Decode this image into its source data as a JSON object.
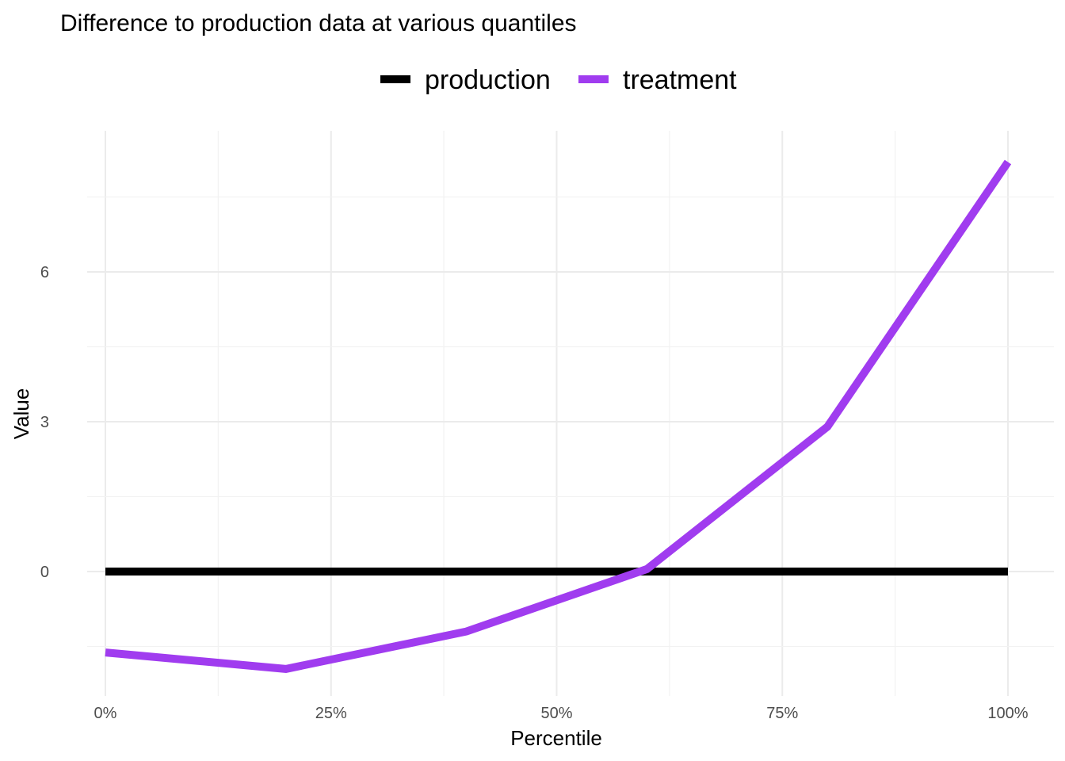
{
  "chart_data": {
    "type": "line",
    "title": "Difference to production data at various quantiles",
    "xlabel": "Percentile",
    "ylabel": "Value",
    "x": [
      0,
      20,
      40,
      60,
      80,
      100
    ],
    "x_ticks": [
      0,
      25,
      50,
      75,
      100
    ],
    "x_tick_labels": [
      "0%",
      "25%",
      "50%",
      "75%",
      "100%"
    ],
    "y_ticks": [
      0,
      3,
      6
    ],
    "y_tick_labels": [
      "0",
      "3",
      "6"
    ],
    "xlim": [
      0,
      100
    ],
    "ylim": [
      -2.4,
      8.9
    ],
    "grid": true,
    "legend_position": "top",
    "series": [
      {
        "name": "production",
        "color": "#000000",
        "values": [
          0,
          0,
          0,
          0,
          0,
          0
        ]
      },
      {
        "name": "treatment",
        "color": "#a03cef",
        "values": [
          -1.62,
          -1.95,
          -1.2,
          0.05,
          2.9,
          8.2
        ]
      }
    ]
  }
}
